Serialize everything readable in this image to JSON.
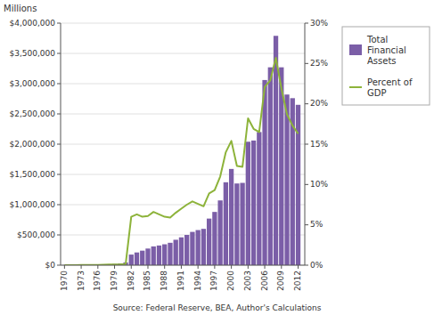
{
  "chart_data": {
    "type": "bar",
    "ylabel": "Millions",
    "annotation": "Source: Federal Reserve, BEA, Author's Calculations",
    "x": [
      1970,
      1971,
      1972,
      1973,
      1974,
      1975,
      1976,
      1977,
      1978,
      1979,
      1980,
      1981,
      1982,
      1983,
      1984,
      1985,
      1986,
      1987,
      1988,
      1989,
      1990,
      1991,
      1992,
      1993,
      1994,
      1995,
      1996,
      1997,
      1998,
      1999,
      2000,
      2001,
      2002,
      2003,
      2004,
      2005,
      2006,
      2007,
      2008,
      2009,
      2010,
      2011,
      2012
    ],
    "series": [
      {
        "name": "Total\nFinancial\nAssets",
        "type": "bar",
        "color": "#7B5EA7",
        "values": [
          2000,
          2000,
          2000,
          3000,
          4000,
          5000,
          7000,
          10000,
          15000,
          20000,
          28000,
          45000,
          175000,
          210000,
          240000,
          275000,
          310000,
          325000,
          345000,
          370000,
          420000,
          460000,
          500000,
          550000,
          580000,
          600000,
          770000,
          880000,
          1070000,
          1370000,
          1590000,
          1350000,
          1360000,
          2040000,
          2060000,
          2200000,
          3060000,
          3270000,
          3790000,
          3270000,
          2820000,
          2760000,
          2650000
        ]
      },
      {
        "name": "Percent of\nGDP",
        "type": "line",
        "axis": "y2",
        "color": "#8DB33A",
        "values": [
          0.01,
          0.01,
          0.01,
          0.02,
          0.02,
          0.03,
          0.04,
          0.05,
          0.07,
          0.09,
          0.1,
          0.15,
          6.0,
          6.3,
          6.0,
          6.1,
          6.6,
          6.3,
          6.0,
          5.9,
          6.5,
          7.0,
          7.5,
          7.9,
          7.6,
          7.3,
          8.9,
          9.3,
          11.0,
          14.0,
          15.4,
          12.3,
          12.2,
          18.2,
          16.9,
          16.5,
          22.1,
          22.9,
          25.7,
          21.9,
          18.7,
          17.3,
          16.3
        ]
      }
    ],
    "xlim": [
      1969.3,
      2013.2
    ],
    "xticks": [
      1970,
      1973,
      1976,
      1979,
      1982,
      1985,
      1988,
      1991,
      1994,
      1997,
      2000,
      2003,
      2006,
      2009,
      2012
    ],
    "ylim": [
      0,
      4000000
    ],
    "yticks": [
      {
        "value": 0,
        "label": "$0"
      },
      {
        "value": 500000,
        "label": "$500,000"
      },
      {
        "value": 1000000,
        "label": "$1,000,000"
      },
      {
        "value": 1500000,
        "label": "$1,500,000"
      },
      {
        "value": 2000000,
        "label": "$2,000,000"
      },
      {
        "value": 2500000,
        "label": "$2,500,000"
      },
      {
        "value": 3000000,
        "label": "$3,000,000"
      },
      {
        "value": 3500000,
        "label": "$3,500,000"
      },
      {
        "value": 4000000,
        "label": "$4,000,000"
      }
    ],
    "y2lim": [
      0,
      30
    ],
    "y2ticks": [
      {
        "value": 0,
        "label": "0%"
      },
      {
        "value": 5,
        "label": "5%"
      },
      {
        "value": 10,
        "label": "10%"
      },
      {
        "value": 15,
        "label": "15%"
      },
      {
        "value": 20,
        "label": "20%"
      },
      {
        "value": 25,
        "label": "25%"
      },
      {
        "value": 30,
        "label": "30%"
      }
    ],
    "grid": true,
    "legend": "right"
  }
}
